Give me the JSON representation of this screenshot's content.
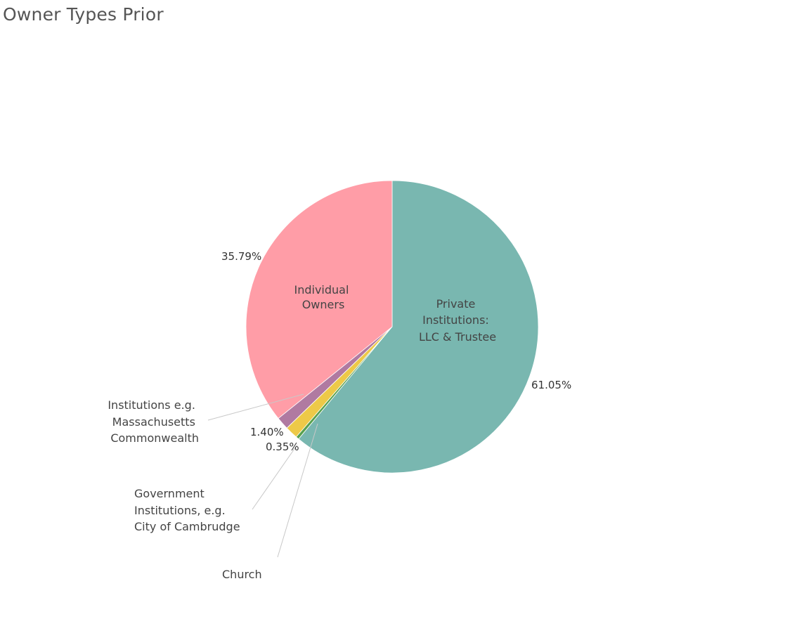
{
  "title": "Owner Types Prior",
  "chart_data": {
    "type": "pie",
    "title": "Owner Types Prior",
    "slices": [
      {
        "name_lines": [
          "Private",
          "Institutions:",
          "LLC & Trustee"
        ],
        "value": 61.05,
        "label": "61.05%",
        "color": "#79b7b0"
      },
      {
        "name_lines": [
          "Church"
        ],
        "value": 0.35,
        "label": "",
        "color": "#59a14f"
      },
      {
        "name_lines": [
          "Government",
          "Institutions, e.g.",
          "City of Cambrudge"
        ],
        "value": 1.4,
        "label": "",
        "color": "#edc948"
      },
      {
        "name_lines": [
          "Institutions e.g.",
          "Massachusetts",
          "Commonwealth"
        ],
        "value": 1.4,
        "label": "1.40%",
        "color": "#b07aa1"
      },
      {
        "name_lines": [
          "Individual",
          "Owners"
        ],
        "value": 35.79,
        "label": "35.79%",
        "color": "#ff9da7"
      }
    ],
    "extra_labels": [
      "0.35%"
    ]
  }
}
